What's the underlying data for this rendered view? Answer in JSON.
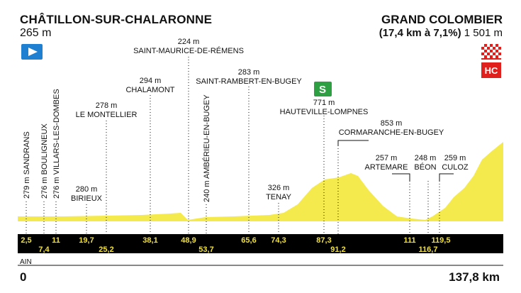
{
  "start": {
    "name": "CHÂTILLON-SUR-CHALARONNE",
    "altitude": "265 m"
  },
  "finish": {
    "name": "GRAND COLOMBIER",
    "climb": "(17,4 km à 7,1%)",
    "altitude": "1 501 m",
    "category": "HC"
  },
  "sprint_icon": "green-sprint-s-icon",
  "start_icon": "blue-start-flag-icon",
  "finish_icon": "checkered-finish-flag-icon",
  "colors": {
    "profile": "#f4ea4e",
    "band": "#000000",
    "km_text": "#f2e23b",
    "sprint": "#2ea043",
    "hc": "#e0201d",
    "start_flag": "#1f7fd1"
  },
  "points_vertical": [
    {
      "alt": "279 m",
      "name": "SANDRANS",
      "km": "2,5"
    },
    {
      "alt": "276 m",
      "name": "BOULIGNEUX",
      "km": "7,4"
    },
    {
      "alt": "276 m",
      "name": "VILLARS-LES-DOMBES",
      "km": "11"
    },
    {
      "alt": "240 m",
      "name": "AMBÉRIEU-EN-BUGEY",
      "km": "53,7"
    }
  ],
  "points_horizontal": [
    {
      "alt": "280 m",
      "name": "BIRIEUX",
      "km": "19,7"
    },
    {
      "alt": "278 m",
      "name": "LE MONTELLIER",
      "km": "25,2"
    },
    {
      "alt": "294 m",
      "name": "CHALAMONT",
      "km": "38,1"
    },
    {
      "alt": "224 m",
      "name": "SAINT-MAURICE-DE-RÉMENS",
      "km": "48,9"
    },
    {
      "alt": "283 m",
      "name": "SAINT-RAMBERT-EN-BUGEY",
      "km": "65,6"
    },
    {
      "alt": "326 m",
      "name": "TENAY",
      "km": "74,3"
    },
    {
      "alt": "771 m",
      "name": "HAUTEVILLE-LOMPNES",
      "km": "87,3"
    },
    {
      "alt": "853 m",
      "name": "CORMARANCHE-EN-BUGEY",
      "km": "91,2"
    },
    {
      "alt": "257 m",
      "name": "ARTEMARE",
      "km": "111"
    },
    {
      "alt": "248 m",
      "name": "BÉON",
      "km": "116,7"
    },
    {
      "alt": "259 m",
      "name": "CULOZ",
      "km": "119,5"
    }
  ],
  "distance_start": "0",
  "distance_total": "137,8 km",
  "region": "AIN"
}
